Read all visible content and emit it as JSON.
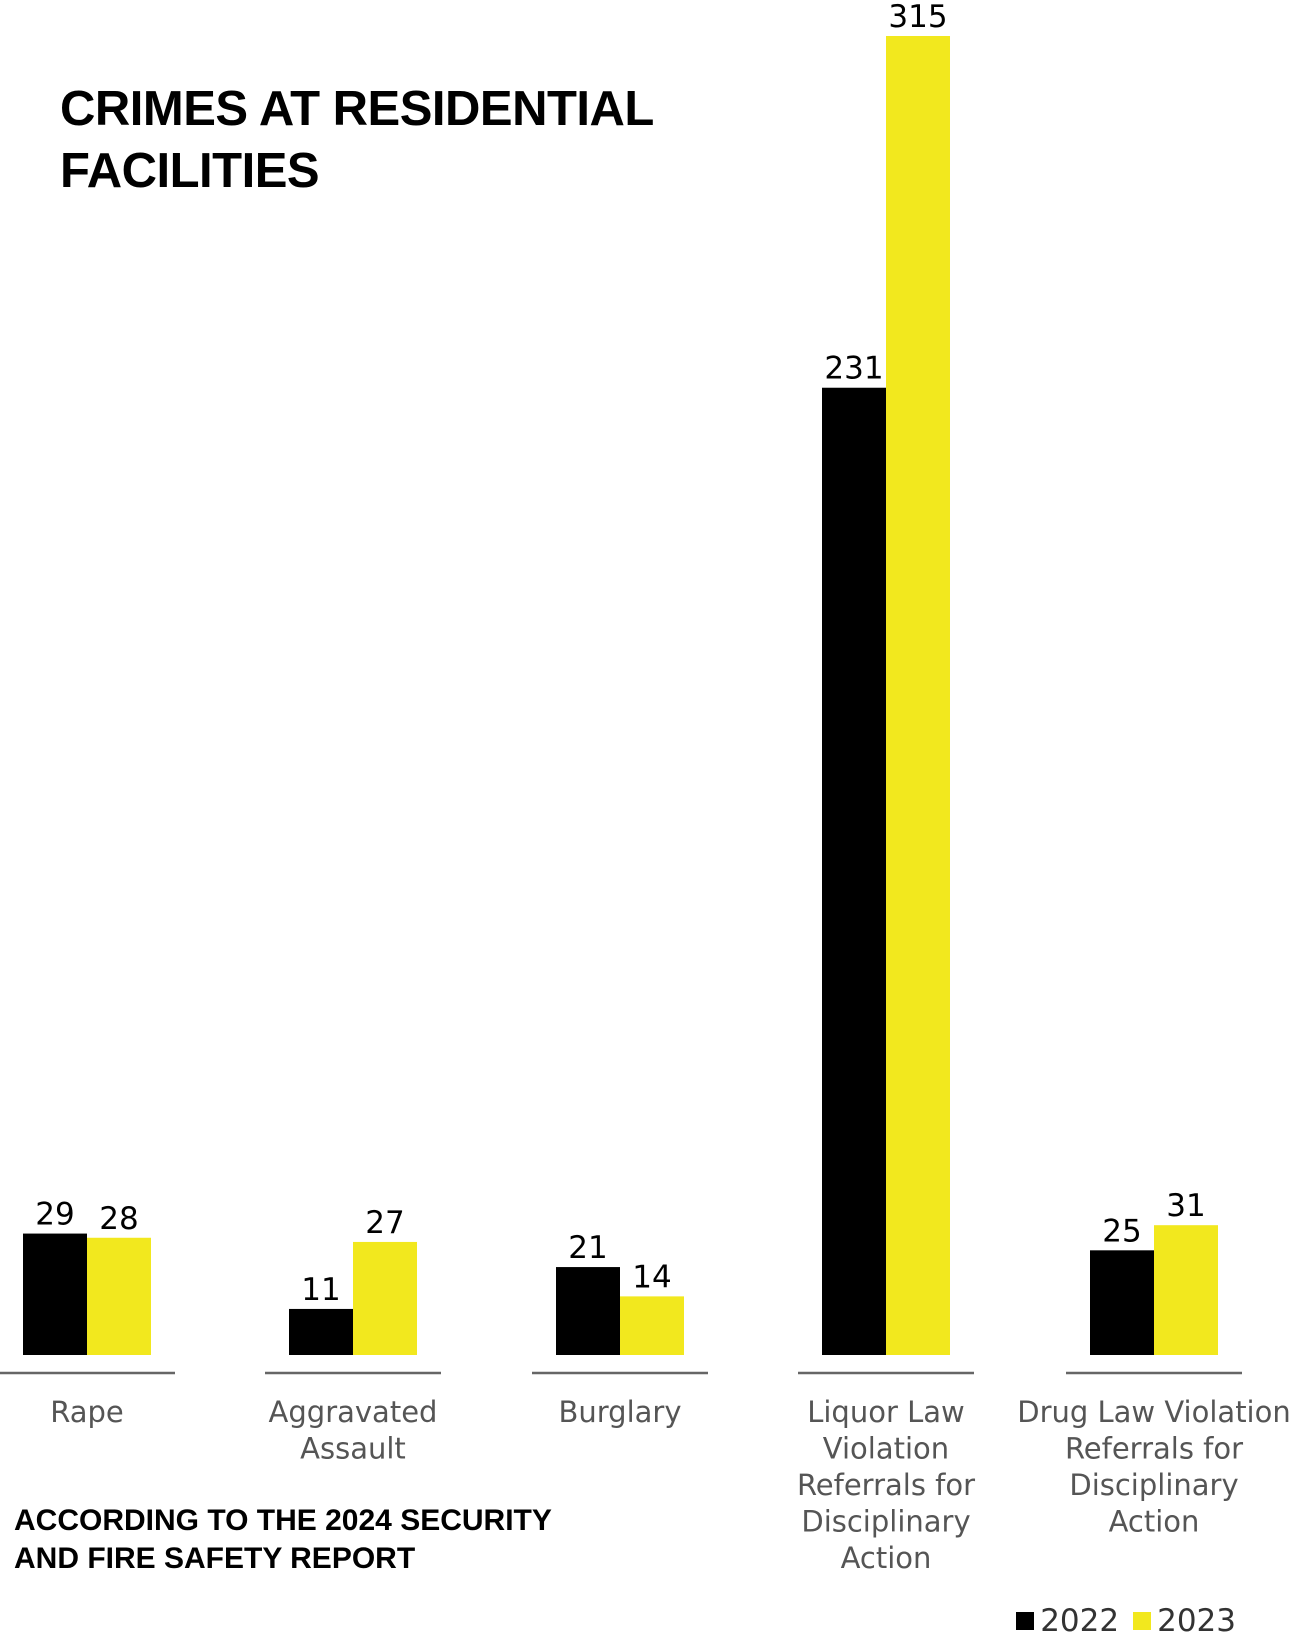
{
  "title_lines": [
    "CRIMES AT RESIDENTIAL",
    "FACILITIES"
  ],
  "subtitle_lines": [
    "ACCORDING TO THE 2024 SECURITY",
    "AND FIRE SAFETY REPORT"
  ],
  "colors": {
    "series_2022": "#000000",
    "series_2023": "#f2e81e",
    "axis": "#666666",
    "label_text": "#555555",
    "value_text": "#000000"
  },
  "chart_data": {
    "type": "bar",
    "title": "CRIMES AT RESIDENTIAL FACILITIES",
    "categories": [
      [
        "Rape"
      ],
      [
        "Aggravated",
        "Assault"
      ],
      [
        "Burglary"
      ],
      [
        "Liquor Law",
        "Violation",
        "Referrals for",
        "Disciplinary",
        "Action"
      ],
      [
        "Drug Law Violation",
        "Referrals for",
        "Disciplinary",
        "Action"
      ]
    ],
    "series": [
      {
        "name": "2022",
        "values": [
          29,
          11,
          21,
          231,
          25
        ]
      },
      {
        "name": "2023",
        "values": [
          28,
          27,
          14,
          315,
          31
        ]
      }
    ],
    "ylim": [
      0,
      315
    ],
    "grid": false,
    "legend_position": "bottom-right"
  },
  "legend": {
    "items": [
      {
        "label": "2022",
        "color_key": "series_2022"
      },
      {
        "label": "2023",
        "color_key": "series_2023"
      }
    ]
  }
}
